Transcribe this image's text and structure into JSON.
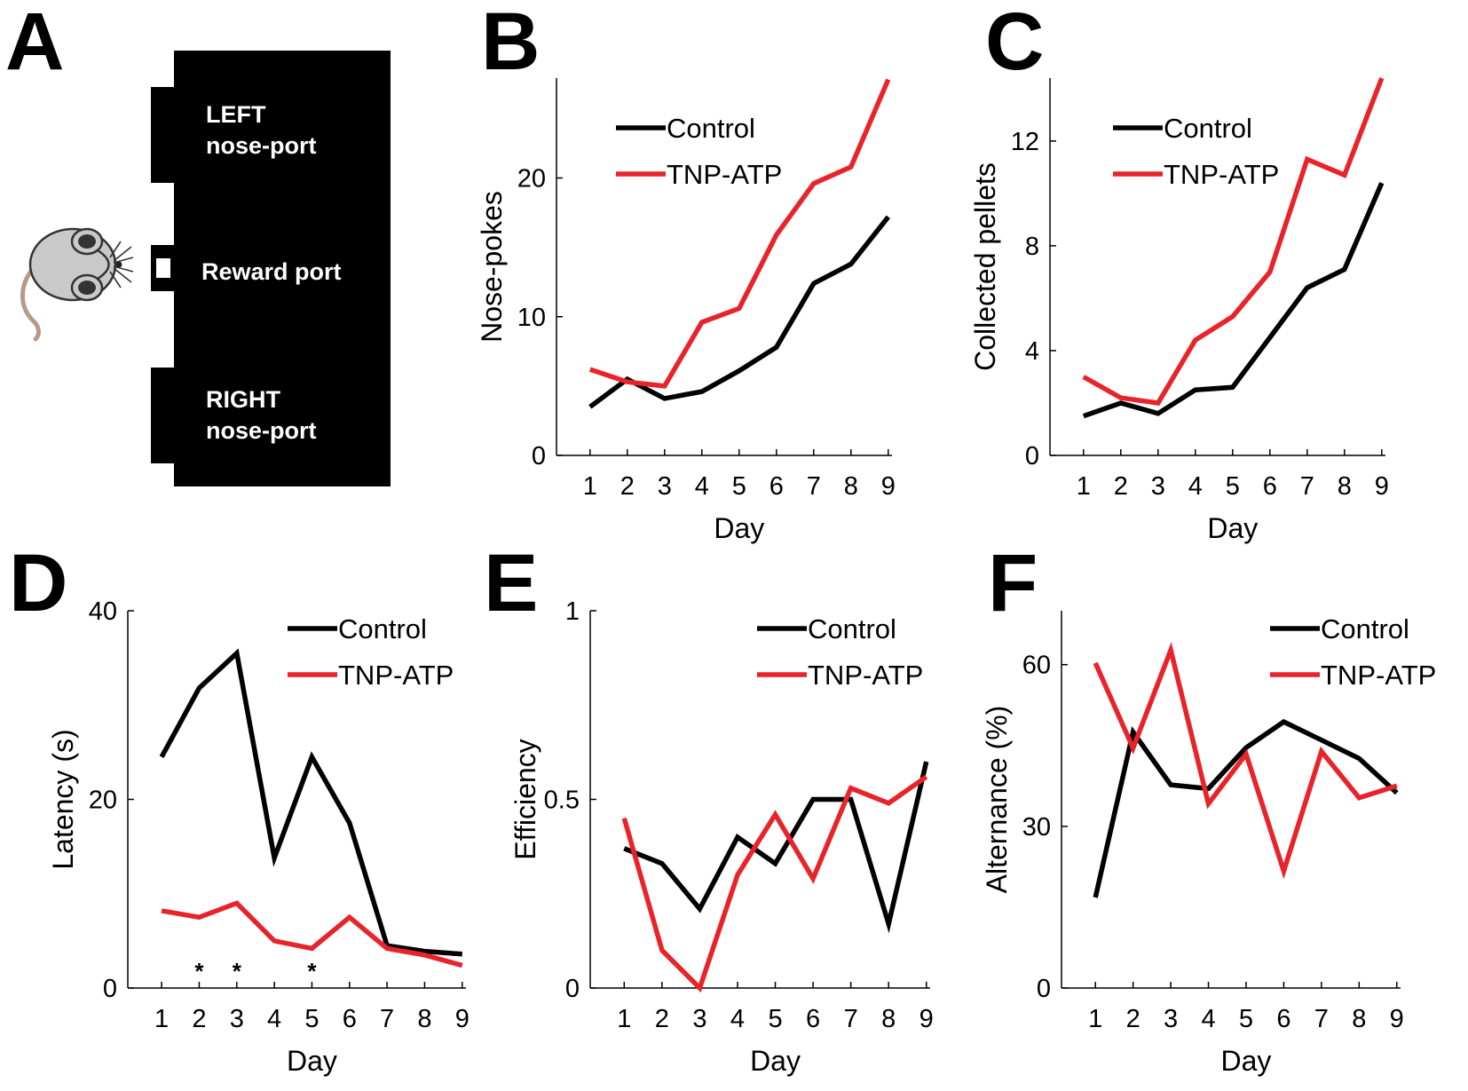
{
  "panel_labels": [
    "A",
    "B",
    "C",
    "D",
    "E",
    "F"
  ],
  "diagram": {
    "left_port": [
      "LEFT",
      "nose-port"
    ],
    "reward_port": "Reward port",
    "right_port": [
      "RIGHT",
      "nose-port"
    ]
  },
  "colors": {
    "control": "#000000",
    "tnp_atp": "#e8232a",
    "box": "#000000"
  },
  "chart_data": [
    {
      "panel": "B",
      "type": "line",
      "title": "",
      "xlabel": "Day",
      "ylabel": "Nose-pokes",
      "x": [
        1,
        2,
        3,
        4,
        5,
        6,
        7,
        8,
        9
      ],
      "xlim": [
        0.1,
        9.1
      ],
      "ylim": [
        0,
        27.2
      ],
      "yticks": [
        0,
        10,
        20
      ],
      "legend_position": "top-left",
      "annotations": [],
      "series": [
        {
          "name": "Control",
          "color": "#000000",
          "values": [
            3.5,
            5.5,
            4.1,
            4.6,
            6.1,
            7.8,
            12.4,
            13.8,
            17.2
          ]
        },
        {
          "name": "TNP-ATP",
          "color": "#e8232a",
          "values": [
            6.2,
            5.3,
            5.0,
            9.6,
            10.6,
            15.9,
            19.6,
            20.8,
            27.1
          ]
        }
      ]
    },
    {
      "panel": "C",
      "type": "line",
      "title": "",
      "xlabel": "Day",
      "ylabel": "Collected pellets",
      "x": [
        1,
        2,
        3,
        4,
        5,
        6,
        7,
        8,
        9
      ],
      "xlim": [
        0.1,
        9.1
      ],
      "ylim": [
        0,
        14.4
      ],
      "yticks": [
        0,
        4,
        8,
        12
      ],
      "legend_position": "top-left",
      "annotations": [],
      "series": [
        {
          "name": "Control",
          "color": "#000000",
          "values": [
            1.5,
            2.0,
            1.6,
            2.5,
            2.6,
            4.5,
            6.4,
            7.1,
            10.4
          ]
        },
        {
          "name": "TNP-ATP",
          "color": "#e8232a",
          "values": [
            3.0,
            2.2,
            2.0,
            4.4,
            5.3,
            7.0,
            11.3,
            10.7,
            14.4
          ]
        }
      ]
    },
    {
      "panel": "D",
      "type": "line",
      "title": "",
      "xlabel": "Day",
      "ylabel": "Latency (s)",
      "x": [
        1,
        2,
        3,
        4,
        5,
        6,
        7,
        8,
        9
      ],
      "xlim": [
        0.1,
        9.1
      ],
      "ylim": [
        0,
        40
      ],
      "yticks": [
        0,
        20,
        40
      ],
      "legend_position": "top-right",
      "annotations": [
        {
          "x": 2,
          "text": "*"
        },
        {
          "x": 3,
          "text": "*"
        },
        {
          "x": 5,
          "text": "*"
        }
      ],
      "series": [
        {
          "name": "Control",
          "color": "#000000",
          "values": [
            24.5,
            31.8,
            35.5,
            13.8,
            24.5,
            17.5,
            4.5,
            3.9,
            3.6
          ]
        },
        {
          "name": "TNP-ATP",
          "color": "#e8232a",
          "values": [
            8.2,
            7.5,
            9.0,
            5.0,
            4.2,
            7.5,
            4.2,
            3.5,
            2.4
          ]
        }
      ]
    },
    {
      "panel": "E",
      "type": "line",
      "title": "",
      "xlabel": "Day",
      "ylabel": "Efficiency",
      "x": [
        1,
        2,
        3,
        4,
        5,
        6,
        7,
        8,
        9
      ],
      "xlim": [
        0.1,
        9.1
      ],
      "ylim": [
        0,
        1
      ],
      "yticks": [
        0,
        0.5,
        1
      ],
      "legend_position": "top-right",
      "annotations": [],
      "series": [
        {
          "name": "Control",
          "color": "#000000",
          "values": [
            0.37,
            0.33,
            0.21,
            0.4,
            0.33,
            0.5,
            0.5,
            0.17,
            0.6
          ]
        },
        {
          "name": "TNP-ATP",
          "color": "#e8232a",
          "values": [
            0.45,
            0.1,
            0.0,
            0.3,
            0.46,
            0.29,
            0.53,
            0.49,
            0.56
          ]
        }
      ]
    },
    {
      "panel": "F",
      "type": "line",
      "title": "",
      "xlabel": "Day",
      "ylabel": "Alternance (%)",
      "x": [
        1,
        2,
        3,
        4,
        5,
        6,
        7,
        8,
        9
      ],
      "xlim": [
        0.1,
        9.1
      ],
      "ylim": [
        0,
        70
      ],
      "yticks": [
        0,
        30,
        60
      ],
      "legend_position": "top-right",
      "annotations": [],
      "series": [
        {
          "name": "Control",
          "color": "#000000",
          "values": [
            16.8,
            47.5,
            37.7,
            37.0,
            44.6,
            49.4,
            46.0,
            42.6,
            36.2
          ]
        },
        {
          "name": "TNP-ATP",
          "color": "#e8232a",
          "values": [
            60.3,
            44.5,
            62.7,
            34.2,
            43.4,
            21.7,
            43.9,
            35.3,
            37.5
          ]
        }
      ]
    }
  ]
}
